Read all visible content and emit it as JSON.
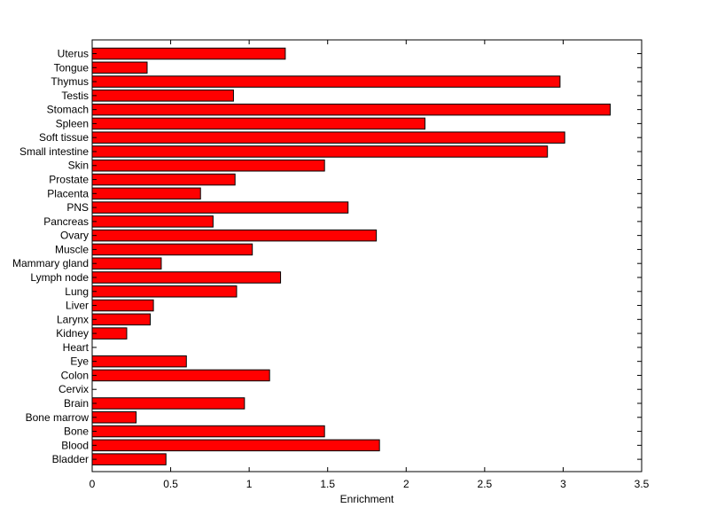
{
  "chart_data": {
    "type": "bar",
    "orientation": "horizontal",
    "categories": [
      "Uterus",
      "Tongue",
      "Thymus",
      "Testis",
      "Stomach",
      "Spleen",
      "Soft tissue",
      "Small intestine",
      "Skin",
      "Prostate",
      "Placenta",
      "PNS",
      "Pancreas",
      "Ovary",
      "Muscle",
      "Mammary gland",
      "Lymph node",
      "Lung",
      "Liver",
      "Larynx",
      "Kidney",
      "Heart",
      "Eye",
      "Colon",
      "Cervix",
      "Brain",
      "Bone marrow",
      "Bone",
      "Blood",
      "Bladder"
    ],
    "values": [
      1.23,
      0.35,
      2.98,
      0.9,
      3.3,
      2.12,
      3.01,
      2.9,
      1.48,
      0.91,
      0.69,
      1.63,
      0.77,
      1.81,
      1.02,
      0.44,
      1.2,
      0.92,
      0.39,
      0.37,
      0.22,
      0.0,
      0.6,
      1.13,
      0.0,
      0.97,
      0.28,
      1.48,
      1.83,
      0.47
    ],
    "title": "",
    "xlabel": "Enrichment",
    "ylabel": "",
    "xlim": [
      0,
      3.5
    ],
    "xticks": [
      "0",
      "0.5",
      "1",
      "1.5",
      "2",
      "2.5",
      "3",
      "3.5"
    ],
    "bar_color": "#ff0000",
    "edge_color": "#000000",
    "grid": false,
    "legend": "none"
  }
}
